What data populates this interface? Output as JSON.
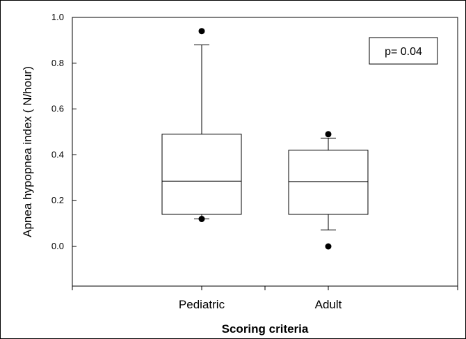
{
  "chart_data": {
    "type": "box",
    "xlabel": "Scoring criteria",
    "ylabel": "Apnea hypopnea index ( N/hour)",
    "ylim": [
      -0.18,
      1.0
    ],
    "yticks": [
      0.0,
      0.2,
      0.4,
      0.6,
      0.8,
      1.0
    ],
    "ytick_labels": [
      "0.0",
      "0.2",
      "0.4",
      "0.6",
      "0.8",
      "1.0"
    ],
    "categories": [
      "Pediatric",
      "Adult"
    ],
    "series": [
      {
        "category": "Pediatric",
        "whisker_low": 0.12,
        "q1": 0.14,
        "median": 0.285,
        "q3": 0.49,
        "whisker_high": 0.88,
        "outliers": [
          0.94,
          0.12
        ]
      },
      {
        "category": "Adult",
        "whisker_low": 0.072,
        "q1": 0.14,
        "median": 0.283,
        "q3": 0.42,
        "whisker_high": 0.473,
        "outliers": [
          0.49,
          0.0
        ]
      }
    ],
    "annotation": "p= 0.04",
    "legend": "none",
    "grid": false
  }
}
